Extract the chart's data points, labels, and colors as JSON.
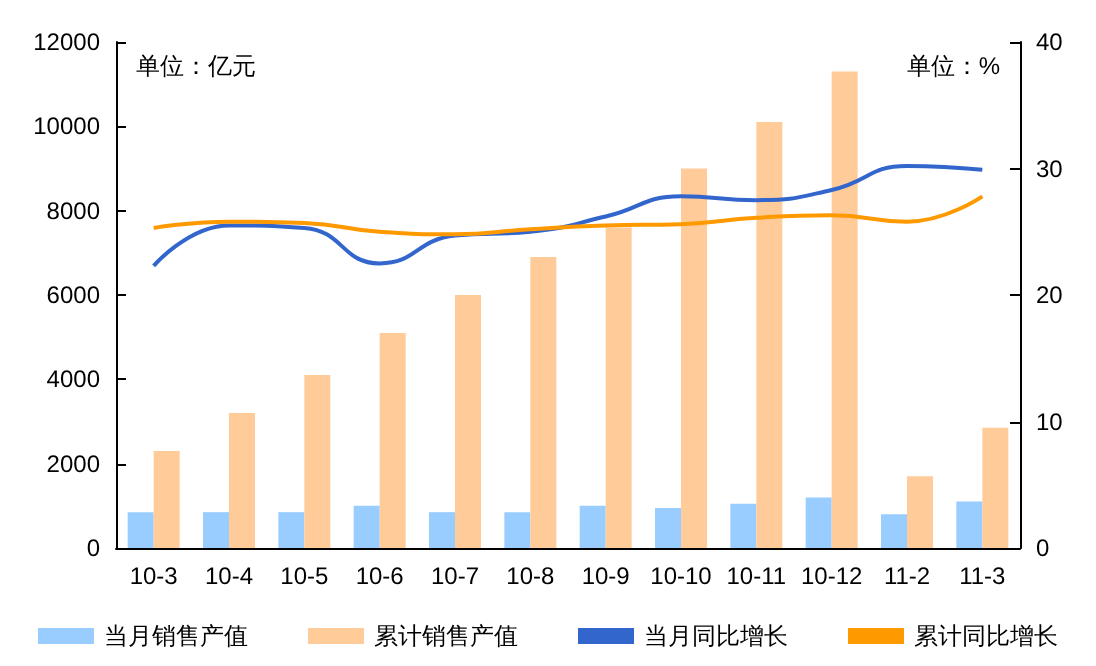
{
  "chart_data": {
    "type": "bar",
    "categories": [
      "10-3",
      "10-4",
      "10-5",
      "10-6",
      "10-7",
      "10-8",
      "10-9",
      "10-10",
      "10-11",
      "10-12",
      "11-2",
      "11-3"
    ],
    "series": [
      {
        "name": "当月销售产值",
        "color": "#99ccff",
        "values": [
          850,
          850,
          850,
          1000,
          850,
          850,
          1000,
          950,
          1050,
          1200,
          800,
          1100
        ]
      },
      {
        "name": "累计销售产值",
        "color": "#ffcc99",
        "values": [
          2300,
          3200,
          4100,
          5100,
          6000,
          6900,
          7600,
          9000,
          10100,
          11300,
          1700,
          2850
        ]
      },
      {
        "name": "当月同比增长",
        "type": "line",
        "axis": "y2",
        "color": "#3366cc",
        "values": [
          22.3,
          25.5,
          25.3,
          22.5,
          24.7,
          25,
          26.2,
          27.8,
          27.5,
          28.3,
          30.2,
          29.9
        ]
      },
      {
        "name": "累计同比增长",
        "type": "line",
        "axis": "y2",
        "color": "#ff9900",
        "values": [
          25.3,
          25.8,
          25.7,
          25,
          24.8,
          25.2,
          25.5,
          25.6,
          26.1,
          26.3,
          25.8,
          27.8
        ]
      }
    ],
    "ylim": [
      0,
      12000
    ],
    "yticks": [
      0,
      2000,
      4000,
      6000,
      8000,
      10000,
      12000
    ],
    "y2lim": [
      0,
      40
    ],
    "y2ticks": [
      0,
      10,
      20,
      30,
      40
    ],
    "annotations": [
      "单位：亿元",
      "单位：%"
    ],
    "grid": false,
    "legend": "bottom",
    "marker": "none",
    "line_style": "solid"
  }
}
